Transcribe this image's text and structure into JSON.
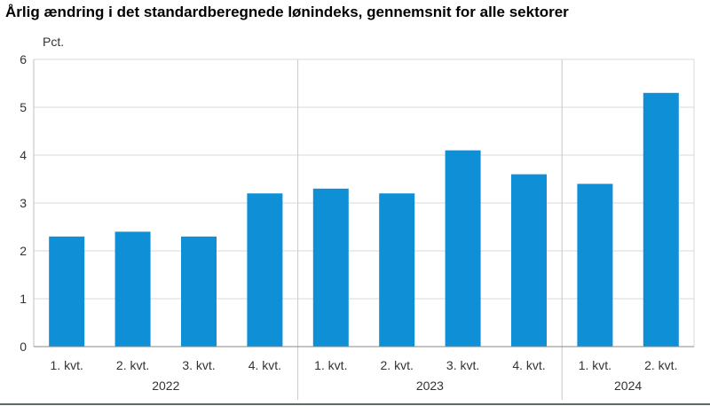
{
  "chart_data": {
    "type": "bar",
    "title": "Årlig ændring i det standardberegnede lønindeks, gennemsnit for alle sektorer",
    "ylabel": "Pct.",
    "xlabel": "",
    "ylim": [
      0,
      6
    ],
    "yticks": [
      "0",
      "1",
      "2",
      "3",
      "4",
      "5",
      "6"
    ],
    "categories": [
      "1. kvt.",
      "2. kvt.",
      "3. kvt.",
      "4. kvt.",
      "1. kvt.",
      "2. kvt.",
      "3. kvt.",
      "4. kvt.",
      "1. kvt.",
      "2. kvt."
    ],
    "groups": [
      {
        "label": "2022",
        "count": 4
      },
      {
        "label": "2023",
        "count": 4
      },
      {
        "label": "2024",
        "count": 2
      }
    ],
    "values": [
      2.3,
      2.4,
      2.3,
      3.2,
      3.3,
      3.2,
      4.1,
      3.6,
      3.4,
      5.3
    ],
    "bar_color": "#0f8fd6",
    "grid": true,
    "legend": "none"
  }
}
